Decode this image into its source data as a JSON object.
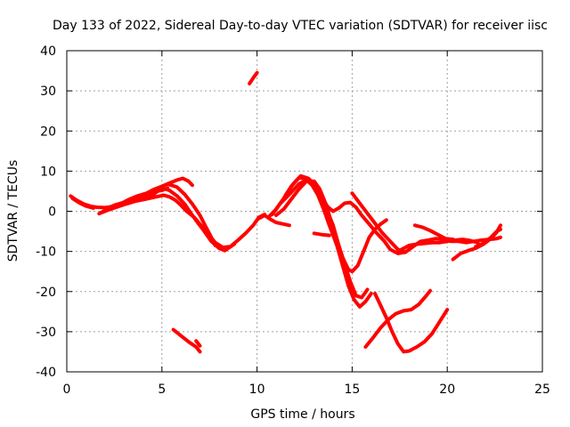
{
  "chart_data": {
    "type": "line",
    "title": "Day 133 of 2022, Sidereal Day-to-day VTEC variation (SDTVAR) for receiver iisc",
    "xlabel": "GPS time / hours",
    "ylabel": "SDTVAR / TECUs",
    "xlim": [
      0,
      25
    ],
    "ylim": [
      -40,
      40
    ],
    "xticks": [
      0,
      5,
      10,
      15,
      20,
      25
    ],
    "yticks": [
      -40,
      -30,
      -20,
      -10,
      0,
      10,
      20,
      30,
      40
    ],
    "grid": true,
    "series_color": "#ff0000",
    "series": [
      {
        "values": [
          [
            0.2,
            3.8
          ],
          [
            0.5,
            2.8
          ],
          [
            0.9,
            1.8
          ],
          [
            1.3,
            1.2
          ],
          [
            1.6,
            1.0
          ],
          [
            2.0,
            0.9
          ],
          [
            2.5,
            1.2
          ],
          [
            3.0,
            2.0
          ],
          [
            3.5,
            3.0
          ],
          [
            4.0,
            3.8
          ],
          [
            4.5,
            4.8
          ],
          [
            5.0,
            5.2
          ],
          [
            5.3,
            5.8
          ]
        ]
      },
      {
        "values": [
          [
            0.3,
            3.2
          ],
          [
            0.7,
            2.0
          ],
          [
            1.0,
            1.3
          ],
          [
            1.4,
            0.8
          ]
        ]
      },
      {
        "values": [
          [
            1.8,
            -0.3
          ],
          [
            2.2,
            0.6
          ],
          [
            2.7,
            1.5
          ],
          [
            3.2,
            2.8
          ],
          [
            3.7,
            3.8
          ],
          [
            4.2,
            4.5
          ],
          [
            4.6,
            5.5
          ],
          [
            5.0,
            6.2
          ],
          [
            5.4,
            7.0
          ],
          [
            5.8,
            7.8
          ],
          [
            6.1,
            8.2
          ],
          [
            6.4,
            7.5
          ],
          [
            6.6,
            6.5
          ]
        ]
      },
      {
        "values": [
          [
            1.7,
            -0.6
          ],
          [
            2.1,
            0.2
          ],
          [
            2.6,
            1.0
          ],
          [
            3.1,
            1.8
          ],
          [
            3.6,
            2.5
          ],
          [
            4.1,
            3.0
          ],
          [
            4.6,
            3.5
          ],
          [
            5.1,
            4.0
          ],
          [
            5.4,
            3.6
          ],
          [
            5.7,
            2.8
          ],
          [
            6.0,
            1.5
          ],
          [
            6.3,
            0.0
          ],
          [
            6.7,
            -1.5
          ],
          [
            7.0,
            -3.2
          ],
          [
            7.4,
            -5.5
          ],
          [
            7.8,
            -7.8
          ],
          [
            8.2,
            -9.0
          ],
          [
            8.6,
            -8.8
          ],
          [
            9.0,
            -7.2
          ],
          [
            9.4,
            -5.5
          ],
          [
            9.8,
            -3.5
          ],
          [
            10.1,
            -1.5
          ],
          [
            10.4,
            -0.8
          ]
        ]
      },
      {
        "values": [
          [
            2.0,
            0.5
          ],
          [
            2.5,
            1.5
          ],
          [
            3.0,
            2.2
          ],
          [
            3.5,
            2.8
          ],
          [
            4.0,
            3.2
          ],
          [
            4.5,
            4.0
          ],
          [
            5.0,
            5.8
          ],
          [
            5.4,
            5.2
          ],
          [
            5.8,
            3.8
          ],
          [
            6.2,
            1.8
          ],
          [
            6.5,
            -0.3
          ],
          [
            6.8,
            -2.3
          ],
          [
            7.2,
            -4.8
          ],
          [
            7.6,
            -7.5
          ],
          [
            8.0,
            -9.2
          ],
          [
            8.3,
            -9.8
          ],
          [
            8.8,
            -8.2
          ]
        ]
      },
      {
        "values": [
          [
            5.3,
            6.8
          ],
          [
            5.8,
            6.0
          ],
          [
            6.2,
            4.2
          ],
          [
            6.6,
            1.8
          ],
          [
            7.0,
            -1.0
          ],
          [
            7.3,
            -3.8
          ],
          [
            7.6,
            -6.5
          ],
          [
            7.8,
            -8.5
          ]
        ]
      },
      {
        "values": [
          [
            5.6,
            -29.5
          ],
          [
            6.0,
            -31.0
          ],
          [
            6.4,
            -32.5
          ],
          [
            6.8,
            -33.8
          ],
          [
            7.0,
            -35.0
          ]
        ]
      },
      {
        "values": [
          [
            6.8,
            -32.3
          ],
          [
            7.0,
            -33.5
          ]
        ]
      },
      {
        "values": [
          [
            9.6,
            31.8
          ],
          [
            9.8,
            33.2
          ],
          [
            10.0,
            34.5
          ]
        ]
      },
      {
        "values": [
          [
            10.1,
            -1.8
          ],
          [
            10.4,
            -1.0
          ],
          [
            10.7,
            -2.0
          ],
          [
            11.0,
            -2.8
          ],
          [
            11.4,
            -3.2
          ],
          [
            11.7,
            -3.5
          ]
        ]
      },
      {
        "values": [
          [
            10.6,
            -1.5
          ],
          [
            11.0,
            0.5
          ],
          [
            11.4,
            3.2
          ],
          [
            11.8,
            6.2
          ],
          [
            12.2,
            8.3
          ],
          [
            12.5,
            8.2
          ],
          [
            12.8,
            7.3
          ],
          [
            13.1,
            5.8
          ],
          [
            13.4,
            3.0
          ],
          [
            13.7,
            0.0
          ],
          [
            14.0,
            -3.5
          ],
          [
            14.3,
            -8.5
          ],
          [
            14.6,
            -13.0
          ],
          [
            14.9,
            -17.5
          ],
          [
            15.2,
            -21.0
          ],
          [
            15.5,
            -21.5
          ],
          [
            15.8,
            -19.5
          ]
        ]
      },
      {
        "values": [
          [
            10.8,
            -0.8
          ],
          [
            11.2,
            1.8
          ],
          [
            11.7,
            4.2
          ],
          [
            12.2,
            6.8
          ],
          [
            12.6,
            7.8
          ],
          [
            12.9,
            6.5
          ],
          [
            13.2,
            4.0
          ],
          [
            13.5,
            0.5
          ],
          [
            13.8,
            -3.5
          ],
          [
            14.2,
            -8.5
          ],
          [
            14.5,
            -13.5
          ],
          [
            14.8,
            -18.5
          ],
          [
            15.1,
            -22.0
          ],
          [
            15.4,
            -23.8
          ],
          [
            15.7,
            -22.5
          ],
          [
            16.0,
            -20.5
          ]
        ]
      },
      {
        "values": [
          [
            11.0,
            -1.0
          ],
          [
            11.4,
            0.5
          ],
          [
            11.8,
            3.0
          ],
          [
            12.2,
            5.5
          ],
          [
            12.6,
            7.5
          ],
          [
            13.0,
            7.5
          ],
          [
            13.3,
            5.5
          ],
          [
            13.6,
            2.0
          ],
          [
            13.9,
            -2.5
          ],
          [
            14.2,
            -7.5
          ],
          [
            14.5,
            -11.5
          ],
          [
            14.8,
            -14.5
          ],
          [
            15.0,
            -15.0
          ],
          [
            15.3,
            -13.5
          ],
          [
            15.6,
            -10.0
          ],
          [
            15.9,
            -6.5
          ],
          [
            16.2,
            -4.5
          ],
          [
            16.5,
            -3.2
          ],
          [
            16.8,
            -2.2
          ]
        ]
      },
      {
        "values": [
          [
            11.5,
            4.0
          ],
          [
            11.9,
            6.8
          ],
          [
            12.3,
            8.8
          ],
          [
            12.7,
            8.2
          ],
          [
            13.1,
            6.2
          ],
          [
            13.4,
            3.5
          ],
          [
            13.7,
            1.2
          ],
          [
            14.0,
            0.0
          ],
          [
            14.3,
            0.8
          ],
          [
            14.6,
            2.0
          ],
          [
            14.9,
            2.2
          ],
          [
            15.2,
            1.0
          ],
          [
            15.5,
            -1.0
          ],
          [
            15.9,
            -3.2
          ],
          [
            16.3,
            -5.5
          ],
          [
            16.7,
            -7.5
          ],
          [
            17.0,
            -9.5
          ],
          [
            17.4,
            -10.5
          ],
          [
            17.8,
            -10.2
          ]
        ]
      },
      {
        "values": [
          [
            13.0,
            -5.5
          ],
          [
            13.4,
            -5.8
          ],
          [
            13.8,
            -6.0
          ]
        ]
      },
      {
        "values": [
          [
            15.0,
            4.5
          ],
          [
            15.4,
            2.0
          ],
          [
            15.8,
            -0.5
          ],
          [
            16.2,
            -3.0
          ],
          [
            16.6,
            -5.5
          ],
          [
            17.0,
            -7.5
          ],
          [
            17.4,
            -9.5
          ],
          [
            17.8,
            -10.2
          ],
          [
            18.2,
            -8.8
          ],
          [
            18.6,
            -7.5
          ],
          [
            19.0,
            -7.2
          ],
          [
            19.4,
            -6.8
          ],
          [
            19.8,
            -7.0
          ],
          [
            20.2,
            -7.5
          ],
          [
            20.6,
            -7.5
          ],
          [
            21.0,
            -7.8
          ],
          [
            21.4,
            -7.5
          ],
          [
            21.8,
            -7.2
          ],
          [
            22.2,
            -7.0
          ],
          [
            22.6,
            -6.8
          ],
          [
            22.8,
            -6.5
          ]
        ]
      },
      {
        "values": [
          [
            16.2,
            -20.5
          ],
          [
            16.5,
            -23.5
          ],
          [
            16.8,
            -26.5
          ],
          [
            17.1,
            -30.0
          ],
          [
            17.4,
            -33.0
          ],
          [
            17.7,
            -35.0
          ],
          [
            18.0,
            -34.8
          ],
          [
            18.4,
            -33.8
          ],
          [
            18.8,
            -32.5
          ],
          [
            19.2,
            -30.5
          ],
          [
            19.6,
            -27.5
          ],
          [
            20.0,
            -24.5
          ]
        ]
      },
      {
        "values": [
          [
            15.7,
            -33.8
          ],
          [
            16.1,
            -31.5
          ],
          [
            16.5,
            -29.0
          ],
          [
            16.9,
            -27.0
          ],
          [
            17.3,
            -25.5
          ],
          [
            17.7,
            -24.8
          ],
          [
            18.1,
            -24.5
          ],
          [
            18.5,
            -23.2
          ],
          [
            18.9,
            -21.0
          ],
          [
            19.1,
            -19.8
          ]
        ]
      },
      {
        "values": [
          [
            17.6,
            -9.5
          ],
          [
            18.0,
            -8.5
          ],
          [
            18.4,
            -8.2
          ],
          [
            18.8,
            -8.0
          ],
          [
            19.2,
            -7.8
          ],
          [
            19.6,
            -7.8
          ],
          [
            20.0,
            -7.5
          ],
          [
            20.4,
            -7.2
          ],
          [
            20.8,
            -7.0
          ],
          [
            21.2,
            -7.3
          ],
          [
            21.6,
            -7.8
          ]
        ]
      },
      {
        "values": [
          [
            18.3,
            -3.5
          ],
          [
            18.7,
            -4.0
          ],
          [
            19.1,
            -4.8
          ],
          [
            19.5,
            -5.8
          ],
          [
            19.9,
            -6.8
          ],
          [
            20.3,
            -7.0
          ]
        ]
      },
      {
        "values": [
          [
            20.3,
            -12.0
          ],
          [
            20.7,
            -10.5
          ],
          [
            21.1,
            -9.8
          ],
          [
            21.5,
            -9.2
          ],
          [
            21.9,
            -8.2
          ],
          [
            22.3,
            -6.8
          ],
          [
            22.6,
            -5.2
          ],
          [
            22.8,
            -3.5
          ]
        ]
      },
      {
        "values": [
          [
            21.5,
            -8.8
          ],
          [
            21.9,
            -8.0
          ],
          [
            22.3,
            -6.5
          ],
          [
            22.6,
            -5.0
          ],
          [
            22.8,
            -4.5
          ]
        ]
      }
    ]
  }
}
